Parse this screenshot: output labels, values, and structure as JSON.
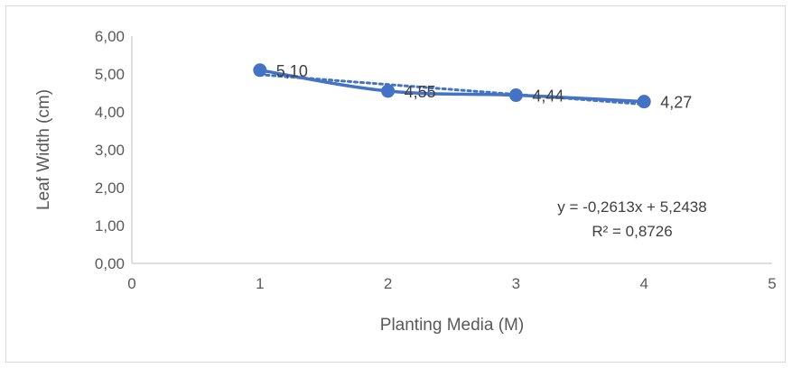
{
  "chart_data": {
    "type": "line",
    "xlabel": "Planting Media (M)",
    "ylabel": "Leaf Width (cm)",
    "xlim": [
      0,
      5
    ],
    "ylim": [
      0,
      6
    ],
    "x_ticks": [
      "0",
      "1",
      "2",
      "3",
      "4",
      "5"
    ],
    "y_ticks": [
      "0,00",
      "1,00",
      "2,00",
      "3,00",
      "4,00",
      "5,00",
      "6,00"
    ],
    "grid": false,
    "series": [
      {
        "x": [
          1,
          2,
          3,
          4
        ],
        "values": [
          5.1,
          4.55,
          4.44,
          4.27
        ],
        "data_labels": [
          "5,10",
          "4,55",
          "4,44",
          "4,27"
        ],
        "color": "#4472c4",
        "smooth": true,
        "markers": true
      }
    ],
    "trendline": {
      "type": "linear",
      "slope": -0.2613,
      "intercept": 5.2438,
      "x_range": [
        1,
        4
      ],
      "style": "dotted",
      "color": "#4472c4",
      "equation": "y = -0,2613x + 5,2438",
      "r_squared": "R² = 0,8726"
    }
  }
}
